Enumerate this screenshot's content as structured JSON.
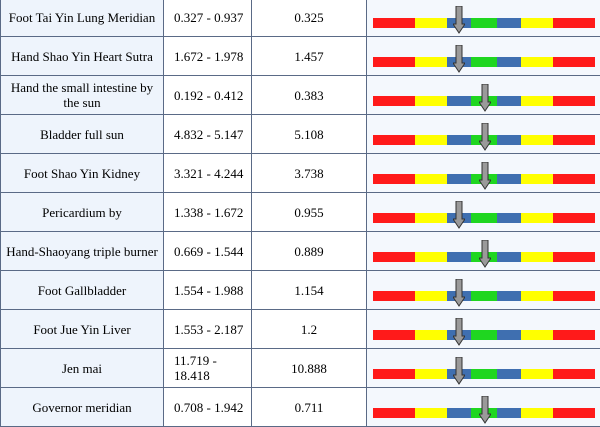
{
  "colors": {
    "low": "#ff1a1a",
    "below_normal": "#ffff00",
    "normal_edge": "#3f6fb0",
    "normal": "#1fd620"
  },
  "gauge": {
    "segments": [
      "red",
      "yellow",
      "blue",
      "green",
      "blue",
      "yellow",
      "red"
    ],
    "icon": "down-arrow-marker-icon"
  },
  "rows": [
    {
      "name": "Foot Tai Yin Lung Meridian",
      "range": "0.327 - 0.937",
      "value": "0.325",
      "marker": 0.39
    },
    {
      "name": "Hand Shao Yin Heart Sutra",
      "range": "1.672 - 1.978",
      "value": "1.457",
      "marker": 0.39
    },
    {
      "name": "Hand the small intestine by the sun",
      "range": "0.192 - 0.412",
      "value": "0.383",
      "marker": 0.505
    },
    {
      "name": "Bladder full sun",
      "range": "4.832 - 5.147",
      "value": "5.108",
      "marker": 0.505
    },
    {
      "name": "Foot Shao Yin Kidney",
      "range": "3.321 - 4.244",
      "value": "3.738",
      "marker": 0.505
    },
    {
      "name": "Pericardium by",
      "range": "1.338 - 1.672",
      "value": "0.955",
      "marker": 0.39
    },
    {
      "name": "Hand-Shaoyang triple burner",
      "range": "0.669 - 1.544",
      "value": "0.889",
      "marker": 0.505
    },
    {
      "name": "Foot Gallbladder",
      "range": "1.554 - 1.988",
      "value": "1.154",
      "marker": 0.39
    },
    {
      "name": "Foot Jue Yin Liver",
      "range": "1.553 - 2.187",
      "value": "1.2",
      "marker": 0.39
    },
    {
      "name": "Jen mai",
      "range": "11.719 - 18.418",
      "value": "10.888",
      "marker": 0.39
    },
    {
      "name": "Governor meridian",
      "range": "0.708 - 1.942",
      "value": "0.711",
      "marker": 0.505
    }
  ]
}
